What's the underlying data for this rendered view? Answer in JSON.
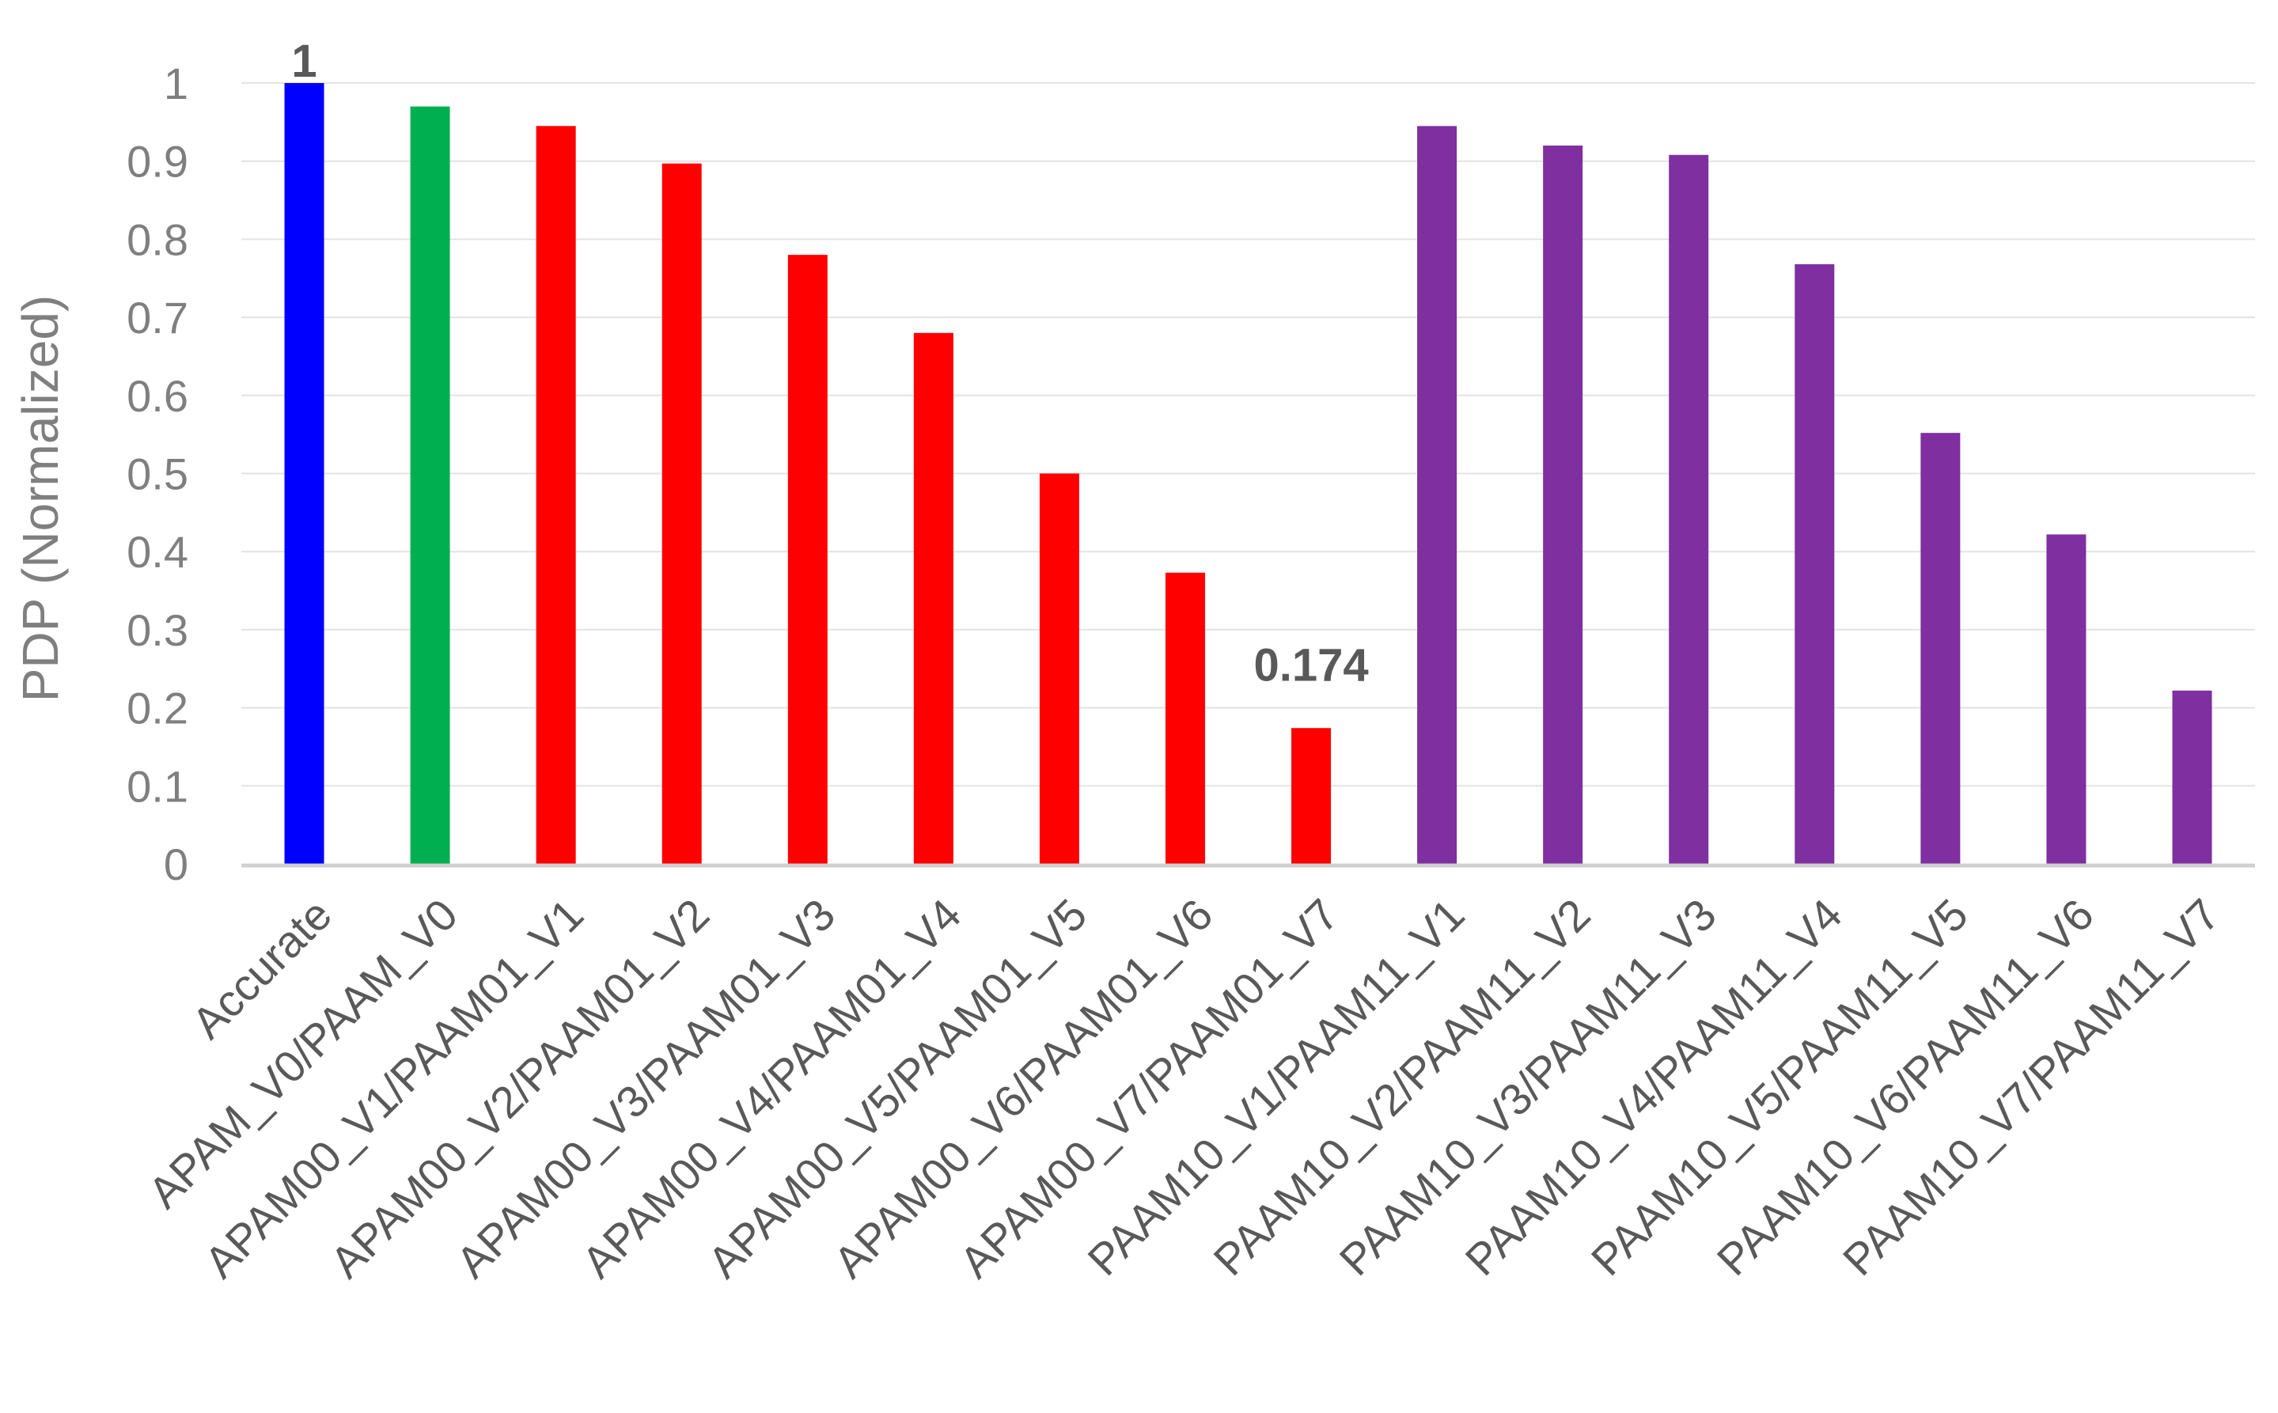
{
  "chart_data": {
    "type": "bar",
    "title": "",
    "xlabel": "",
    "ylabel": "PDP (Normalized)",
    "ylim": [
      0,
      1
    ],
    "yticks": [
      "0",
      "0.1",
      "0.2",
      "0.3",
      "0.4",
      "0.5",
      "0.6",
      "0.7",
      "0.8",
      "0.9",
      "1"
    ],
    "grid": true,
    "legend": "none",
    "categories": [
      "Accurate",
      "APAM_V0/PAAM_V0",
      "APAM00_V1/PAAM01_V1",
      "APAM00_V2/PAAM01_V2",
      "APAM00_V3/PAAM01_V3",
      "APAM00_V4/PAAM01_V4",
      "APAM00_V5/PAAM01_V5",
      "APAM00_V6/PAAM01_V6",
      "APAM00_V7/PAAM01_V7",
      "PAAM10_V1/PAAM11_V1",
      "PAAM10_V2/PAAM11_V2",
      "PAAM10_V3/PAAM11_V3",
      "PAAM10_V4/PAAM11_V4",
      "PAAM10_V5/PAAM11_V5",
      "PAAM10_V6/PAAM11_V6",
      "PAAM10_V7/PAAM11_V7"
    ],
    "values": [
      1,
      0.97,
      0.945,
      0.897,
      0.78,
      0.68,
      0.5,
      0.373,
      0.174,
      0.945,
      0.92,
      0.908,
      0.768,
      0.552,
      0.422,
      0.222
    ],
    "colors": [
      "#0000ff",
      "#00b050",
      "#ff0000",
      "#ff0000",
      "#ff0000",
      "#ff0000",
      "#ff0000",
      "#ff0000",
      "#ff0000",
      "#7f2fa0",
      "#7f2fa0",
      "#7f2fa0",
      "#7f2fa0",
      "#7f2fa0",
      "#7f2fa0",
      "#7f2fa0"
    ],
    "data_labels": [
      {
        "index": 0,
        "text": "1"
      },
      {
        "index": 8,
        "text": "0.174"
      }
    ]
  }
}
